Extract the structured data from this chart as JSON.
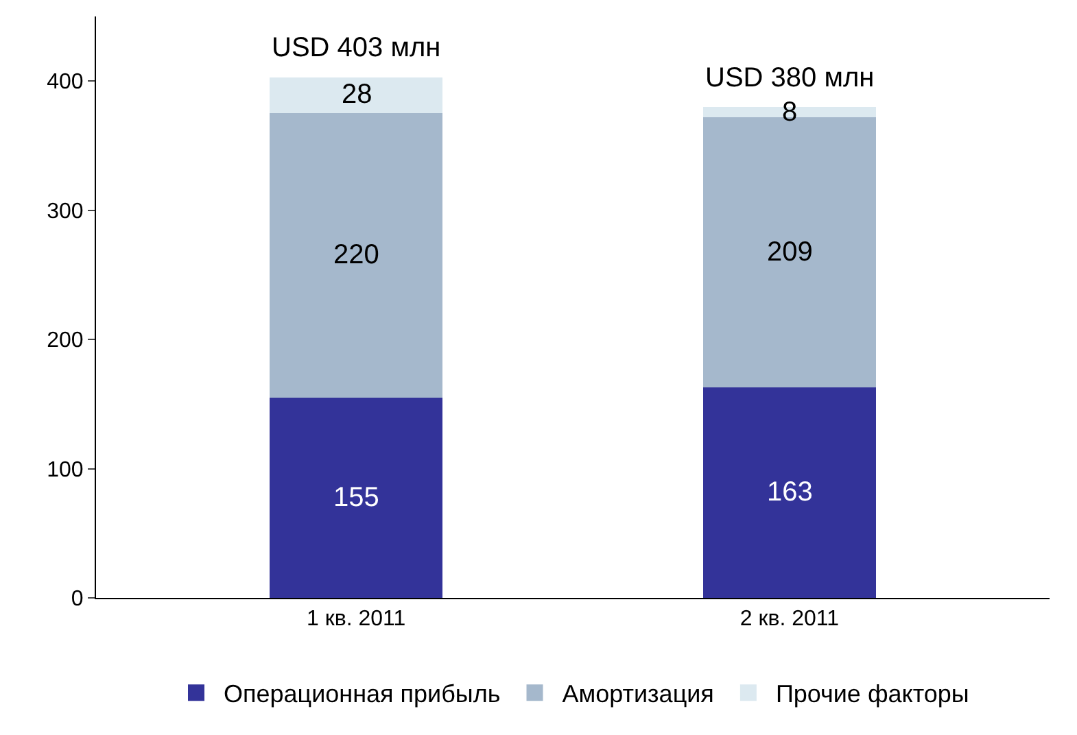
{
  "chart_data": {
    "type": "bar",
    "stacked": true,
    "categories": [
      "1 кв. 2011",
      "2 кв. 2011"
    ],
    "series": [
      {
        "name": "Операционная прибыль",
        "color": "#333399",
        "values": [
          155,
          163
        ]
      },
      {
        "name": "Амортизация",
        "color": "#a5b8cc",
        "values": [
          220,
          209
        ]
      },
      {
        "name": "Прочие факторы",
        "color": "#dce9f0",
        "values": [
          28,
          8
        ]
      }
    ],
    "data_labels": true,
    "totals": [
      "USD 403 млн",
      "USD 380 млн"
    ],
    "ylim": [
      0,
      450
    ],
    "yticks": [
      0,
      100,
      200,
      300,
      400
    ],
    "grid": false,
    "legend": "bottom"
  }
}
